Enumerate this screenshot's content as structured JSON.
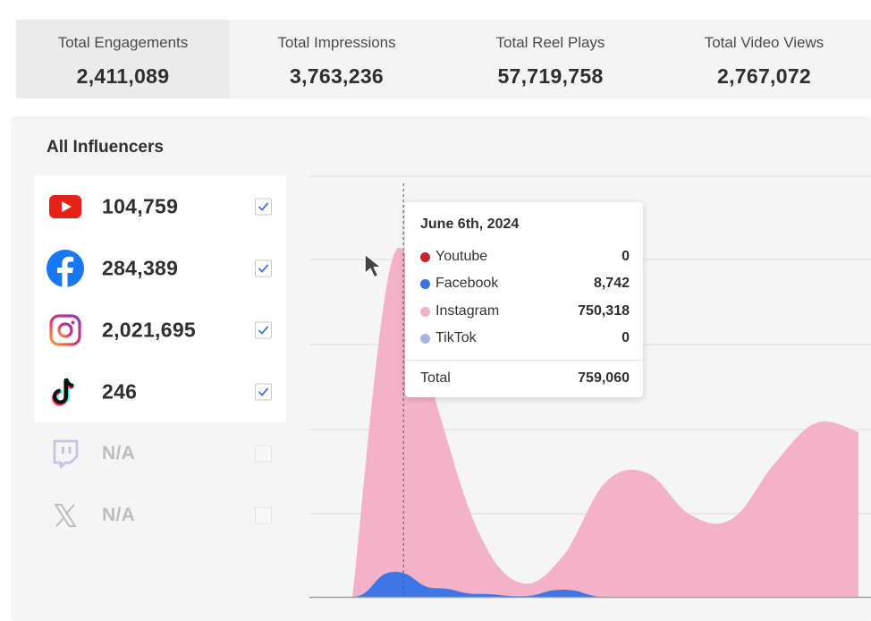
{
  "stats": [
    {
      "label": "Total Engagements",
      "value": "2,411,089",
      "active": true
    },
    {
      "label": "Total Impressions",
      "value": "3,763,236",
      "active": false
    },
    {
      "label": "Total Reel Plays",
      "value": "57,719,758",
      "active": false
    },
    {
      "label": "Total Video Views",
      "value": "2,767,072",
      "active": false
    }
  ],
  "panel": {
    "title": "All Influencers",
    "platforms": [
      {
        "name": "youtube",
        "icon": "youtube-icon",
        "value": "104,759",
        "checked": true
      },
      {
        "name": "facebook",
        "icon": "facebook-icon",
        "value": "284,389",
        "checked": true
      },
      {
        "name": "instagram",
        "icon": "instagram-icon",
        "value": "2,021,695",
        "checked": true
      },
      {
        "name": "tiktok",
        "icon": "tiktok-icon",
        "value": "246",
        "checked": true
      },
      {
        "name": "twitch",
        "icon": "twitch-icon",
        "value": "N/A",
        "checked": false
      },
      {
        "name": "x",
        "icon": "x-icon",
        "value": "N/A",
        "checked": false
      }
    ]
  },
  "tooltip": {
    "date": "June 6th, 2024",
    "rows": [
      {
        "name": "Youtube",
        "value": "0",
        "color": "#c62828"
      },
      {
        "name": "Facebook",
        "value": "8,742",
        "color": "#3b73e0"
      },
      {
        "name": "Instagram",
        "value": "750,318",
        "color": "#f0b0c8"
      },
      {
        "name": "TikTok",
        "value": "0",
        "color": "#a6b4e2"
      }
    ],
    "total_label": "Total",
    "total_value": "759,060"
  },
  "colors": {
    "instagram_area": "#f3b2c8",
    "facebook_area": "#3f76e6",
    "youtube": "#e62117",
    "facebook": "#1877f2",
    "grid": "#dcdcdc",
    "check": "#3f76e6"
  },
  "chart_data": {
    "type": "area",
    "x": [
      0,
      1,
      2,
      3,
      4,
      5,
      6,
      7,
      8,
      9,
      10,
      11,
      12
    ],
    "series": [
      {
        "name": "Instagram",
        "values": [
          0,
          750318,
          420000,
          140000,
          30000,
          90000,
          250000,
          270000,
          180000,
          170000,
          290000,
          380000,
          360000
        ]
      },
      {
        "name": "Facebook",
        "values": [
          0,
          8742,
          3000,
          1000,
          200,
          2500,
          0,
          0,
          0,
          0,
          0,
          0,
          0
        ]
      }
    ],
    "highlight": {
      "label": "June 6th, 2024",
      "index": 1
    }
  }
}
